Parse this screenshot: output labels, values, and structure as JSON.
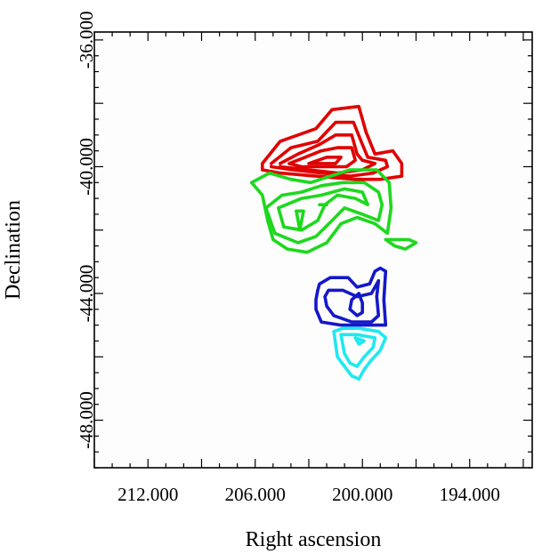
{
  "chart_data": {
    "type": "contour",
    "xlabel": "Right ascension",
    "ylabel": "Declination",
    "xlim": [
      215.0,
      190.5
    ],
    "ylim": [
      -49.5,
      -35.75
    ],
    "x_ticks": [
      212.0,
      206.0,
      200.0,
      194.0
    ],
    "x_tick_labels": [
      "212.000",
      "206.000",
      "200.000",
      "194.000"
    ],
    "y_ticks": [
      -36.0,
      -40.0,
      -44.0,
      -48.0
    ],
    "y_tick_labels": [
      "-36.000",
      "-40.000",
      "-44.000",
      "-48.000"
    ],
    "grid": false,
    "series": [
      {
        "color": "#e00000",
        "contours": [
          [
            [
              205.6,
              -39.9
            ],
            [
              204.6,
              -39.2
            ],
            [
              202.6,
              -38.8
            ],
            [
              201.7,
              -38.2
            ],
            [
              200.2,
              -38.1
            ],
            [
              199.8,
              -38.9
            ],
            [
              199.3,
              -39.6
            ],
            [
              198.3,
              -39.5
            ],
            [
              197.8,
              -39.9
            ],
            [
              197.8,
              -40.3
            ],
            [
              199.0,
              -40.4
            ],
            [
              200.4,
              -40.4
            ],
            [
              202.6,
              -40.3
            ],
            [
              204.6,
              -40.2
            ],
            [
              205.6,
              -40.1
            ],
            [
              205.6,
              -39.9
            ]
          ],
          [
            [
              205.1,
              -39.9
            ],
            [
              204.0,
              -39.4
            ],
            [
              202.5,
              -39.2
            ],
            [
              201.5,
              -38.6
            ],
            [
              200.5,
              -38.6
            ],
            [
              200.0,
              -39.3
            ],
            [
              199.7,
              -39.7
            ],
            [
              198.7,
              -39.8
            ],
            [
              198.6,
              -40.0
            ],
            [
              199.4,
              -40.2
            ],
            [
              200.7,
              -40.3
            ],
            [
              202.3,
              -40.2
            ],
            [
              203.9,
              -40.1
            ],
            [
              205.1,
              -40.0
            ]
          ],
          [
            [
              204.6,
              -39.9
            ],
            [
              203.6,
              -39.6
            ],
            [
              202.4,
              -39.3
            ],
            [
              201.5,
              -39.0
            ],
            [
              200.6,
              -39.0
            ],
            [
              200.3,
              -39.6
            ],
            [
              200.0,
              -39.8
            ],
            [
              199.3,
              -39.9
            ],
            [
              200.0,
              -40.1
            ],
            [
              201.4,
              -40.2
            ],
            [
              203.0,
              -40.1
            ],
            [
              204.6,
              -40.0
            ]
          ],
          [
            [
              204.1,
              -39.9
            ],
            [
              203.2,
              -39.7
            ],
            [
              202.3,
              -39.5
            ],
            [
              201.4,
              -39.4
            ],
            [
              200.6,
              -39.4
            ],
            [
              200.4,
              -39.8
            ],
            [
              200.9,
              -40.0
            ],
            [
              202.2,
              -40.0
            ],
            [
              203.4,
              -40.0
            ],
            [
              204.1,
              -39.9
            ]
          ],
          [
            [
              203.0,
              -39.9
            ],
            [
              202.0,
              -39.7
            ],
            [
              201.2,
              -39.7
            ],
            [
              201.5,
              -39.9
            ],
            [
              202.6,
              -39.9
            ],
            [
              203.0,
              -39.9
            ]
          ]
        ]
      },
      {
        "color": "#1ed81e",
        "contours": [
          [
            [
              206.2,
              -40.5
            ],
            [
              205.6,
              -40.9
            ],
            [
              205.3,
              -41.7
            ],
            [
              205.0,
              -42.3
            ],
            [
              204.2,
              -42.6
            ],
            [
              203.1,
              -42.7
            ],
            [
              202.0,
              -42.4
            ],
            [
              201.2,
              -41.8
            ],
            [
              200.3,
              -41.6
            ],
            [
              199.3,
              -41.8
            ],
            [
              198.6,
              -42.1
            ],
            [
              198.4,
              -41.3
            ],
            [
              198.5,
              -40.5
            ],
            [
              199.2,
              -40.1
            ],
            [
              200.7,
              -40.1
            ],
            [
              201.8,
              -40.3
            ],
            [
              202.9,
              -40.5
            ],
            [
              204.0,
              -40.4
            ],
            [
              205.2,
              -40.2
            ],
            [
              206.2,
              -40.5
            ]
          ],
          [
            [
              205.4,
              -41.3
            ],
            [
              204.9,
              -42.1
            ],
            [
              203.6,
              -42.4
            ],
            [
              202.6,
              -42.2
            ],
            [
              201.7,
              -41.7
            ],
            [
              201.0,
              -41.3
            ],
            [
              200.0,
              -41.5
            ],
            [
              199.1,
              -41.7
            ],
            [
              198.9,
              -41.2
            ],
            [
              199.1,
              -40.8
            ],
            [
              199.9,
              -40.5
            ],
            [
              201.1,
              -40.5
            ],
            [
              202.3,
              -40.6
            ],
            [
              203.4,
              -40.8
            ],
            [
              204.5,
              -40.9
            ],
            [
              205.4,
              -41.3
            ]
          ],
          [
            [
              204.7,
              -41.3
            ],
            [
              204.4,
              -41.9
            ],
            [
              203.4,
              -42.0
            ],
            [
              202.5,
              -41.7
            ],
            [
              202.1,
              -41.2
            ],
            [
              201.4,
              -40.9
            ],
            [
              200.4,
              -41.0
            ],
            [
              199.7,
              -41.2
            ],
            [
              200.0,
              -40.8
            ],
            [
              201.0,
              -40.7
            ],
            [
              202.3,
              -40.9
            ],
            [
              203.4,
              -41.0
            ],
            [
              204.7,
              -41.3
            ]
          ],
          [
            [
              203.7,
              -41.4
            ],
            [
              203.5,
              -42.0
            ],
            [
              203.3,
              -41.4
            ],
            [
              203.7,
              -41.4
            ]
          ],
          [
            [
              202.4,
              -41.2
            ],
            [
              202.0,
              -41.2
            ]
          ],
          [
            [
              198.7,
              -42.3
            ],
            [
              197.4,
              -42.3
            ],
            [
              197.0,
              -42.4
            ],
            [
              197.6,
              -42.6
            ],
            [
              198.2,
              -42.5
            ],
            [
              198.7,
              -42.3
            ]
          ]
        ]
      },
      {
        "color": "#1418c8",
        "contours": [
          [
            [
              202.5,
              -43.9
            ],
            [
              202.6,
              -44.2
            ],
            [
              202.6,
              -44.5
            ],
            [
              202.3,
              -44.9
            ],
            [
              201.2,
              -45.0
            ],
            [
              199.6,
              -45.0
            ],
            [
              198.7,
              -45.0
            ],
            [
              198.8,
              -44.2
            ],
            [
              198.7,
              -43.3
            ],
            [
              199.0,
              -43.2
            ],
            [
              199.3,
              -43.3
            ],
            [
              199.6,
              -43.7
            ],
            [
              200.3,
              -43.8
            ],
            [
              200.8,
              -43.5
            ],
            [
              201.8,
              -43.5
            ],
            [
              202.4,
              -43.7
            ],
            [
              202.5,
              -43.9
            ]
          ],
          [
            [
              202.1,
              -44.1
            ],
            [
              202.0,
              -44.4
            ],
            [
              201.6,
              -44.7
            ],
            [
              200.6,
              -44.9
            ],
            [
              199.5,
              -44.9
            ],
            [
              199.1,
              -44.7
            ],
            [
              199.2,
              -44.1
            ],
            [
              199.1,
              -43.6
            ],
            [
              199.5,
              -44.0
            ],
            [
              200.3,
              -44.1
            ],
            [
              201.1,
              -43.9
            ],
            [
              201.9,
              -43.9
            ],
            [
              202.1,
              -44.1
            ]
          ],
          [
            [
              200.7,
              -44.5
            ],
            [
              200.6,
              -44.2
            ],
            [
              200.2,
              -44.0
            ],
            [
              200.0,
              -44.3
            ],
            [
              200.0,
              -44.6
            ],
            [
              200.3,
              -44.7
            ],
            [
              200.7,
              -44.5
            ]
          ]
        ]
      },
      {
        "color": "#20e8f0",
        "contours": [
          [
            [
              201.6,
              -45.2
            ],
            [
              201.4,
              -46.0
            ],
            [
              201.0,
              -46.3
            ],
            [
              200.6,
              -46.6
            ],
            [
              200.2,
              -46.7
            ],
            [
              199.9,
              -46.4
            ],
            [
              199.5,
              -46.1
            ],
            [
              199.0,
              -45.8
            ],
            [
              198.7,
              -45.4
            ],
            [
              199.1,
              -45.2
            ],
            [
              200.2,
              -45.1
            ],
            [
              201.1,
              -45.1
            ],
            [
              201.6,
              -45.2
            ]
          ],
          [
            [
              201.2,
              -45.3
            ],
            [
              201.0,
              -45.9
            ],
            [
              200.7,
              -46.2
            ],
            [
              200.3,
              -46.3
            ],
            [
              199.9,
              -46.0
            ],
            [
              199.4,
              -45.7
            ],
            [
              199.3,
              -45.4
            ],
            [
              200.3,
              -45.3
            ],
            [
              201.2,
              -45.3
            ]
          ],
          [
            [
              200.4,
              -45.4
            ],
            [
              200.2,
              -45.6
            ],
            [
              199.9,
              -45.5
            ],
            [
              200.4,
              -45.4
            ]
          ]
        ]
      }
    ]
  }
}
